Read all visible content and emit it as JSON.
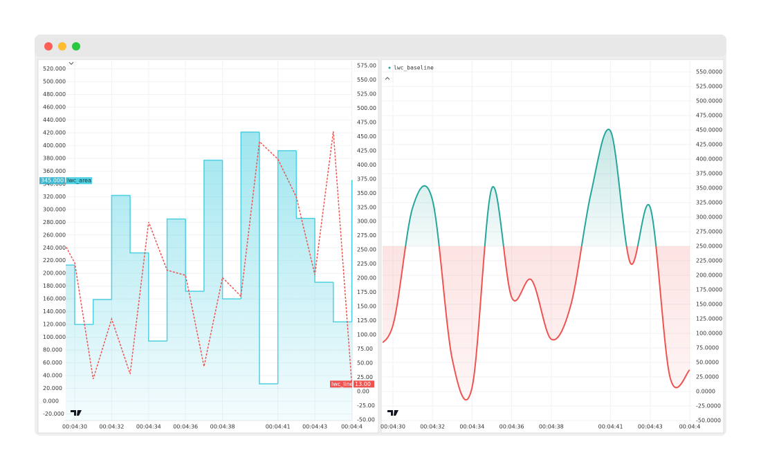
{
  "chart_data": [
    {
      "type": "area",
      "categories": [
        null,
        "00:04:30",
        null,
        "00:04:32",
        null,
        "00:04:34",
        null,
        "00:04:36",
        null,
        "00:04:38",
        null,
        null,
        "00:04:41",
        null,
        "00:04:43",
        null,
        "00:04:4"
      ],
      "series": [
        {
          "name": "lwc_area",
          "color": "#4dd0e1",
          "axis": "y",
          "step": true,
          "values": [
            213,
            120,
            159,
            322,
            232,
            94,
            285,
            172,
            377,
            160,
            421,
            27,
            392,
            286,
            186,
            124,
            345
          ],
          "value_labels": [
            null,
            null,
            null,
            null,
            null,
            null,
            null,
            null,
            null,
            null,
            null,
            null,
            null,
            null,
            null,
            null,
            "345.000"
          ]
        },
        {
          "name": "lwc_line",
          "color": "#ef5350",
          "axis": "y2",
          "dashed": true,
          "values": [
            287,
            227,
            22,
            128,
            31,
            299,
            214,
            205,
            44,
            201,
            168,
            441,
            410,
            343,
            206,
            459,
            13
          ],
          "value_labels": [
            null,
            null,
            null,
            null,
            null,
            null,
            null,
            null,
            null,
            null,
            null,
            null,
            null,
            null,
            null,
            null,
            "13.00"
          ]
        }
      ],
      "ylim": [
        -30.3,
        532.5
      ],
      "yticks": [
        {
          "value": 520,
          "label": "520.000"
        },
        {
          "value": 500,
          "label": "500.000"
        },
        {
          "value": 480,
          "label": "480.000"
        },
        {
          "value": 460,
          "label": "460.000"
        },
        {
          "value": 440,
          "label": "440.000"
        },
        {
          "value": 420,
          "label": "420.000"
        },
        {
          "value": 400,
          "label": "400.000"
        },
        {
          "value": 380,
          "label": "380.000"
        },
        {
          "value": 360,
          "label": "360.000"
        },
        {
          "value": 340,
          "label": "340.000"
        },
        {
          "value": 320,
          "label": "320.000"
        },
        {
          "value": 300,
          "label": "300.000"
        },
        {
          "value": 280,
          "label": "280.000"
        },
        {
          "value": 260,
          "label": "260.000"
        },
        {
          "value": 240,
          "label": "240.000"
        },
        {
          "value": 220,
          "label": "220.000"
        },
        {
          "value": 200,
          "label": "200.000"
        },
        {
          "value": 180,
          "label": "180.000"
        },
        {
          "value": 160,
          "label": "160.000"
        },
        {
          "value": 140,
          "label": "140.000"
        },
        {
          "value": 120,
          "label": "120.000"
        },
        {
          "value": 100,
          "label": "100.000"
        },
        {
          "value": 80,
          "label": "80.000"
        },
        {
          "value": 60,
          "label": "60.000"
        },
        {
          "value": 40,
          "label": "40.000"
        },
        {
          "value": 20,
          "label": "20.000"
        },
        {
          "value": 0,
          "label": "0.000"
        },
        {
          "value": -20,
          "label": "-20.000"
        }
      ],
      "y2lim": [
        -51.3,
        583.5
      ],
      "y2ticks": [
        {
          "value": 575,
          "label": "575.00"
        },
        {
          "value": 550,
          "label": "550.00"
        },
        {
          "value": 525,
          "label": "525.00"
        },
        {
          "value": 500,
          "label": "500.00"
        },
        {
          "value": 475,
          "label": "475.00"
        },
        {
          "value": 450,
          "label": "450.00"
        },
        {
          "value": 425,
          "label": "425.00"
        },
        {
          "value": 400,
          "label": "400.00"
        },
        {
          "value": 375,
          "label": "375.00"
        },
        {
          "value": 350,
          "label": "350.00"
        },
        {
          "value": 325,
          "label": "325.00"
        },
        {
          "value": 300,
          "label": "300.00"
        },
        {
          "value": 275,
          "label": "275.00"
        },
        {
          "value": 250,
          "label": "250.00"
        },
        {
          "value": 225,
          "label": "225.00"
        },
        {
          "value": 200,
          "label": "200.00"
        },
        {
          "value": 175,
          "label": "175.00"
        },
        {
          "value": 150,
          "label": "150.00"
        },
        {
          "value": 125,
          "label": "125.00"
        },
        {
          "value": 100,
          "label": "100.00"
        },
        {
          "value": 75,
          "label": "75.00"
        },
        {
          "value": 50,
          "label": "50.00"
        },
        {
          "value": 25,
          "label": "25.00"
        },
        {
          "value": 0,
          "label": "0.00"
        },
        {
          "value": -25,
          "label": "-25.00"
        },
        {
          "value": -50,
          "label": "-50.00"
        }
      ],
      "grid": true
    },
    {
      "type": "baseline",
      "categories": [
        null,
        "00:04:30",
        null,
        "00:04:32",
        null,
        "00:04:34",
        null,
        "00:04:36",
        null,
        "00:04:38",
        null,
        null,
        "00:04:41",
        null,
        "00:04:43",
        null,
        "00:04:4"
      ],
      "series": [
        {
          "name": "lwc_baseline",
          "color": "#26a69a",
          "below_color": "#ef5350",
          "values": [
            79,
            114,
            317,
            329,
            55,
            7,
            350,
            162,
            192,
            90,
            150,
            340,
            448,
            221,
            317,
            25,
            37
          ]
        }
      ],
      "baseline": 250,
      "ylim": [
        -50,
        569
      ],
      "yticks": [
        {
          "value": 550,
          "label": "550.0000"
        },
        {
          "value": 525,
          "label": "525.0000"
        },
        {
          "value": 500,
          "label": "500.0000"
        },
        {
          "value": 475,
          "label": "475.0000"
        },
        {
          "value": 450,
          "label": "450.0000"
        },
        {
          "value": 425,
          "label": "425.0000"
        },
        {
          "value": 400,
          "label": "400.0000"
        },
        {
          "value": 375,
          "label": "375.0000"
        },
        {
          "value": 350,
          "label": "350.0000"
        },
        {
          "value": 325,
          "label": "325.0000"
        },
        {
          "value": 300,
          "label": "300.0000"
        },
        {
          "value": 275,
          "label": "275.0000"
        },
        {
          "value": 250,
          "label": "250.0000"
        },
        {
          "value": 225,
          "label": "225.0000"
        },
        {
          "value": 200,
          "label": "200.0000"
        },
        {
          "value": 175,
          "label": "175.0000"
        },
        {
          "value": 150,
          "label": "150.0000"
        },
        {
          "value": 125,
          "label": "125.0000"
        },
        {
          "value": 100,
          "label": "100.0000"
        },
        {
          "value": 75,
          "label": "75.0000"
        },
        {
          "value": 50,
          "label": "50.0000"
        },
        {
          "value": 25,
          "label": "25.0000"
        },
        {
          "value": 0,
          "label": "0.0000"
        },
        {
          "value": -25,
          "label": "-25.0000"
        },
        {
          "value": -50,
          "label": "-50.0000"
        }
      ],
      "grid": true
    }
  ]
}
